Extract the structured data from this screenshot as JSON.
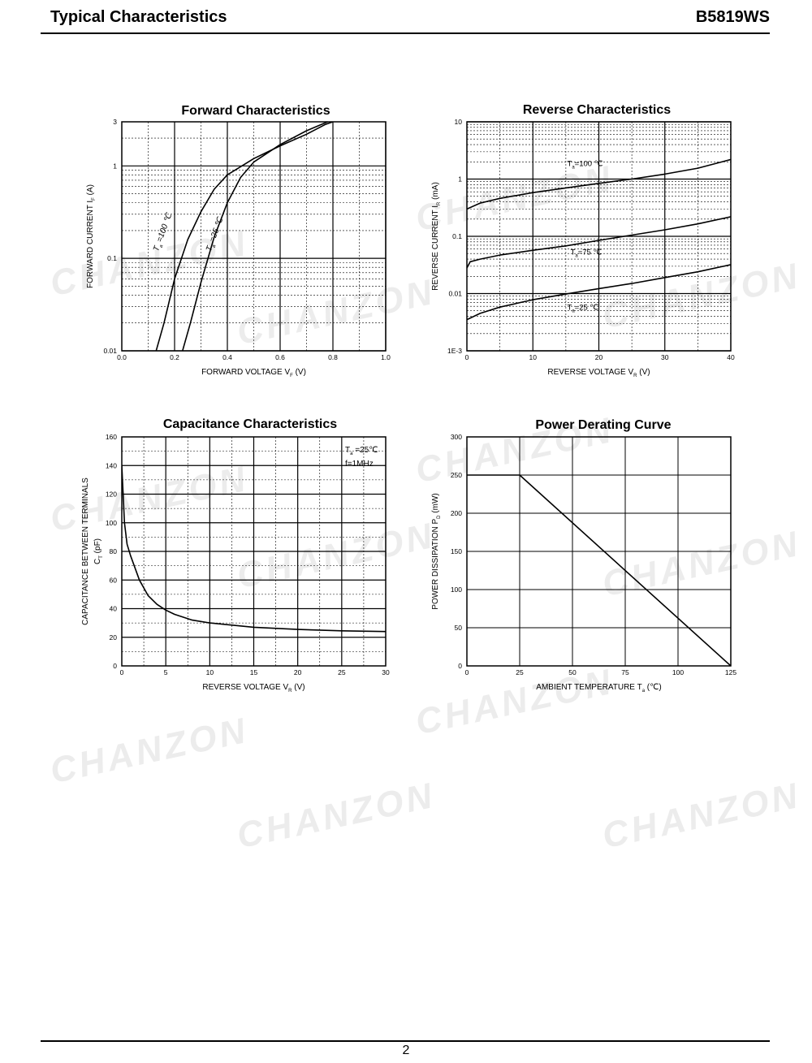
{
  "header": {
    "title": "Typical Characteristics",
    "part_number": "B5819WS"
  },
  "footer": {
    "page_number": "2"
  },
  "watermark": "CHANZON",
  "chart_data": [
    {
      "id": "forward",
      "type": "line",
      "title": "Forward    Characteristics",
      "xlabel": "FORWARD VOLTAGE   V",
      "xlabel_sub": "F",
      "xlabel_unit": "(V)",
      "ylabel": "FORWARD CURRENT   I",
      "ylabel_sub": "F",
      "ylabel_unit": "(A)",
      "xlim": [
        0,
        1.0
      ],
      "ylim": [
        0.01,
        3
      ],
      "yscale": "log",
      "x_ticks": [
        "0.0",
        "0.2",
        "0.4",
        "0.6",
        "0.8",
        "1.0"
      ],
      "y_ticks": [
        "0.01",
        "0.1",
        "1",
        "3"
      ],
      "grid": true,
      "series": [
        {
          "name": "T=100 ℃",
          "label_prefix": "T",
          "label_sub": "a",
          "label_suffix": "=100 ℃",
          "points": [
            [
              0.13,
              0.01
            ],
            [
              0.16,
              0.02
            ],
            [
              0.2,
              0.06
            ],
            [
              0.25,
              0.16
            ],
            [
              0.3,
              0.32
            ],
            [
              0.35,
              0.56
            ],
            [
              0.4,
              0.8
            ],
            [
              0.5,
              1.2
            ],
            [
              0.6,
              1.65
            ],
            [
              0.7,
              2.2
            ],
            [
              0.77,
              2.8
            ],
            [
              0.8,
              3
            ]
          ]
        },
        {
          "name": "T=25 ℃",
          "label_prefix": "T",
          "label_sub": "a",
          "label_suffix": "=25 ℃",
          "points": [
            [
              0.23,
              0.01
            ],
            [
              0.26,
              0.02
            ],
            [
              0.3,
              0.055
            ],
            [
              0.35,
              0.17
            ],
            [
              0.4,
              0.4
            ],
            [
              0.45,
              0.75
            ],
            [
              0.5,
              1.1
            ],
            [
              0.6,
              1.7
            ],
            [
              0.7,
              2.4
            ],
            [
              0.78,
              3
            ]
          ]
        }
      ]
    },
    {
      "id": "reverse",
      "type": "line",
      "title": "Reverse    Characteristics",
      "xlabel": "REVERSE VOLTAGE   V",
      "xlabel_sub": "R",
      "xlabel_unit": "(V)",
      "ylabel": "REVERSE CURRENT   I",
      "ylabel_sub": "R",
      "ylabel_unit": "(mA)",
      "xlim": [
        0,
        40
      ],
      "ylim": [
        0.001,
        10
      ],
      "yscale": "log",
      "x_ticks": [
        "0",
        "10",
        "20",
        "30",
        "40"
      ],
      "y_ticks": [
        "1E-3",
        "0.01",
        "0.1",
        "1",
        "10"
      ],
      "grid": true,
      "series": [
        {
          "name": "T=100 ℃",
          "label_prefix": "T",
          "label_sub": "a",
          "label_suffix": "=100 ℃",
          "points": [
            [
              0,
              0.3
            ],
            [
              2,
              0.38
            ],
            [
              5,
              0.46
            ],
            [
              10,
              0.58
            ],
            [
              15,
              0.7
            ],
            [
              20,
              0.84
            ],
            [
              25,
              1.0
            ],
            [
              30,
              1.22
            ],
            [
              35,
              1.55
            ],
            [
              40,
              2.2
            ]
          ]
        },
        {
          "name": "T=75 ℃",
          "label_prefix": "T",
          "label_sub": "a",
          "label_suffix": "=75 ℃",
          "points": [
            [
              0,
              0.028
            ],
            [
              0.5,
              0.036
            ],
            [
              2,
              0.04
            ],
            [
              5,
              0.047
            ],
            [
              10,
              0.057
            ],
            [
              15,
              0.068
            ],
            [
              20,
              0.085
            ],
            [
              25,
              0.105
            ],
            [
              30,
              0.13
            ],
            [
              35,
              0.165
            ],
            [
              40,
              0.22
            ]
          ]
        },
        {
          "name": "T=25 ℃",
          "label_prefix": "T",
          "label_sub": "a",
          "label_suffix": "=25 ℃",
          "points": [
            [
              0,
              0.0035
            ],
            [
              2,
              0.0045
            ],
            [
              5,
              0.0058
            ],
            [
              10,
              0.0078
            ],
            [
              15,
              0.0098
            ],
            [
              20,
              0.0122
            ],
            [
              25,
              0.015
            ],
            [
              30,
              0.019
            ],
            [
              35,
              0.024
            ],
            [
              40,
              0.032
            ]
          ]
        }
      ]
    },
    {
      "id": "capacitance",
      "type": "line",
      "title": "Capacitance Characteristics",
      "xlabel": "REVERSE VOLTAGE   V",
      "xlabel_sub": "R",
      "xlabel_unit": "(V)",
      "ylabel": "CAPACITANCE BETWEEN TERMINALS",
      "ylabel2": "C",
      "ylabel2_sub": "T",
      "ylabel2_unit": "(pF)",
      "xlim": [
        0,
        30
      ],
      "ylim": [
        0,
        160
      ],
      "x_ticks": [
        "0",
        "5",
        "10",
        "15",
        "20",
        "25",
        "30"
      ],
      "y_ticks": [
        "0",
        "20",
        "40",
        "60",
        "80",
        "100",
        "120",
        "140",
        "160"
      ],
      "grid": true,
      "annotations": [
        {
          "prefix": "T",
          "sub": "a",
          "suffix": "=25℃"
        },
        {
          "prefix": "f=1MHz",
          "sub": "",
          "suffix": ""
        }
      ],
      "series": [
        {
          "name": "",
          "points": [
            [
              0,
              140
            ],
            [
              0.3,
              100
            ],
            [
              0.6,
              85
            ],
            [
              1,
              77
            ],
            [
              2,
              60
            ],
            [
              3,
              49
            ],
            [
              4,
              43
            ],
            [
              5,
              39
            ],
            [
              6,
              36
            ],
            [
              8,
              32
            ],
            [
              10,
              30
            ],
            [
              15,
              27
            ],
            [
              20,
              25.5
            ],
            [
              25,
              24.5
            ],
            [
              30,
              24
            ]
          ]
        }
      ]
    },
    {
      "id": "derating",
      "type": "line",
      "title": "Power Derating Curve",
      "xlabel": "AMBIENT TEMPERATURE   T",
      "xlabel_sub": "a",
      "xlabel_unit": "(℃)",
      "ylabel": "POWER DISSIPATION   P",
      "ylabel_sub": "D",
      "ylabel_unit": "(mW)",
      "xlim": [
        0,
        125
      ],
      "ylim": [
        0,
        300
      ],
      "x_ticks": [
        "0",
        "25",
        "50",
        "75",
        "100",
        "125"
      ],
      "y_ticks": [
        "0",
        "50",
        "100",
        "150",
        "200",
        "250",
        "300"
      ],
      "grid": true,
      "series": [
        {
          "name": "",
          "points": [
            [
              0,
              250
            ],
            [
              25,
              250
            ],
            [
              125,
              0
            ]
          ]
        }
      ]
    }
  ]
}
